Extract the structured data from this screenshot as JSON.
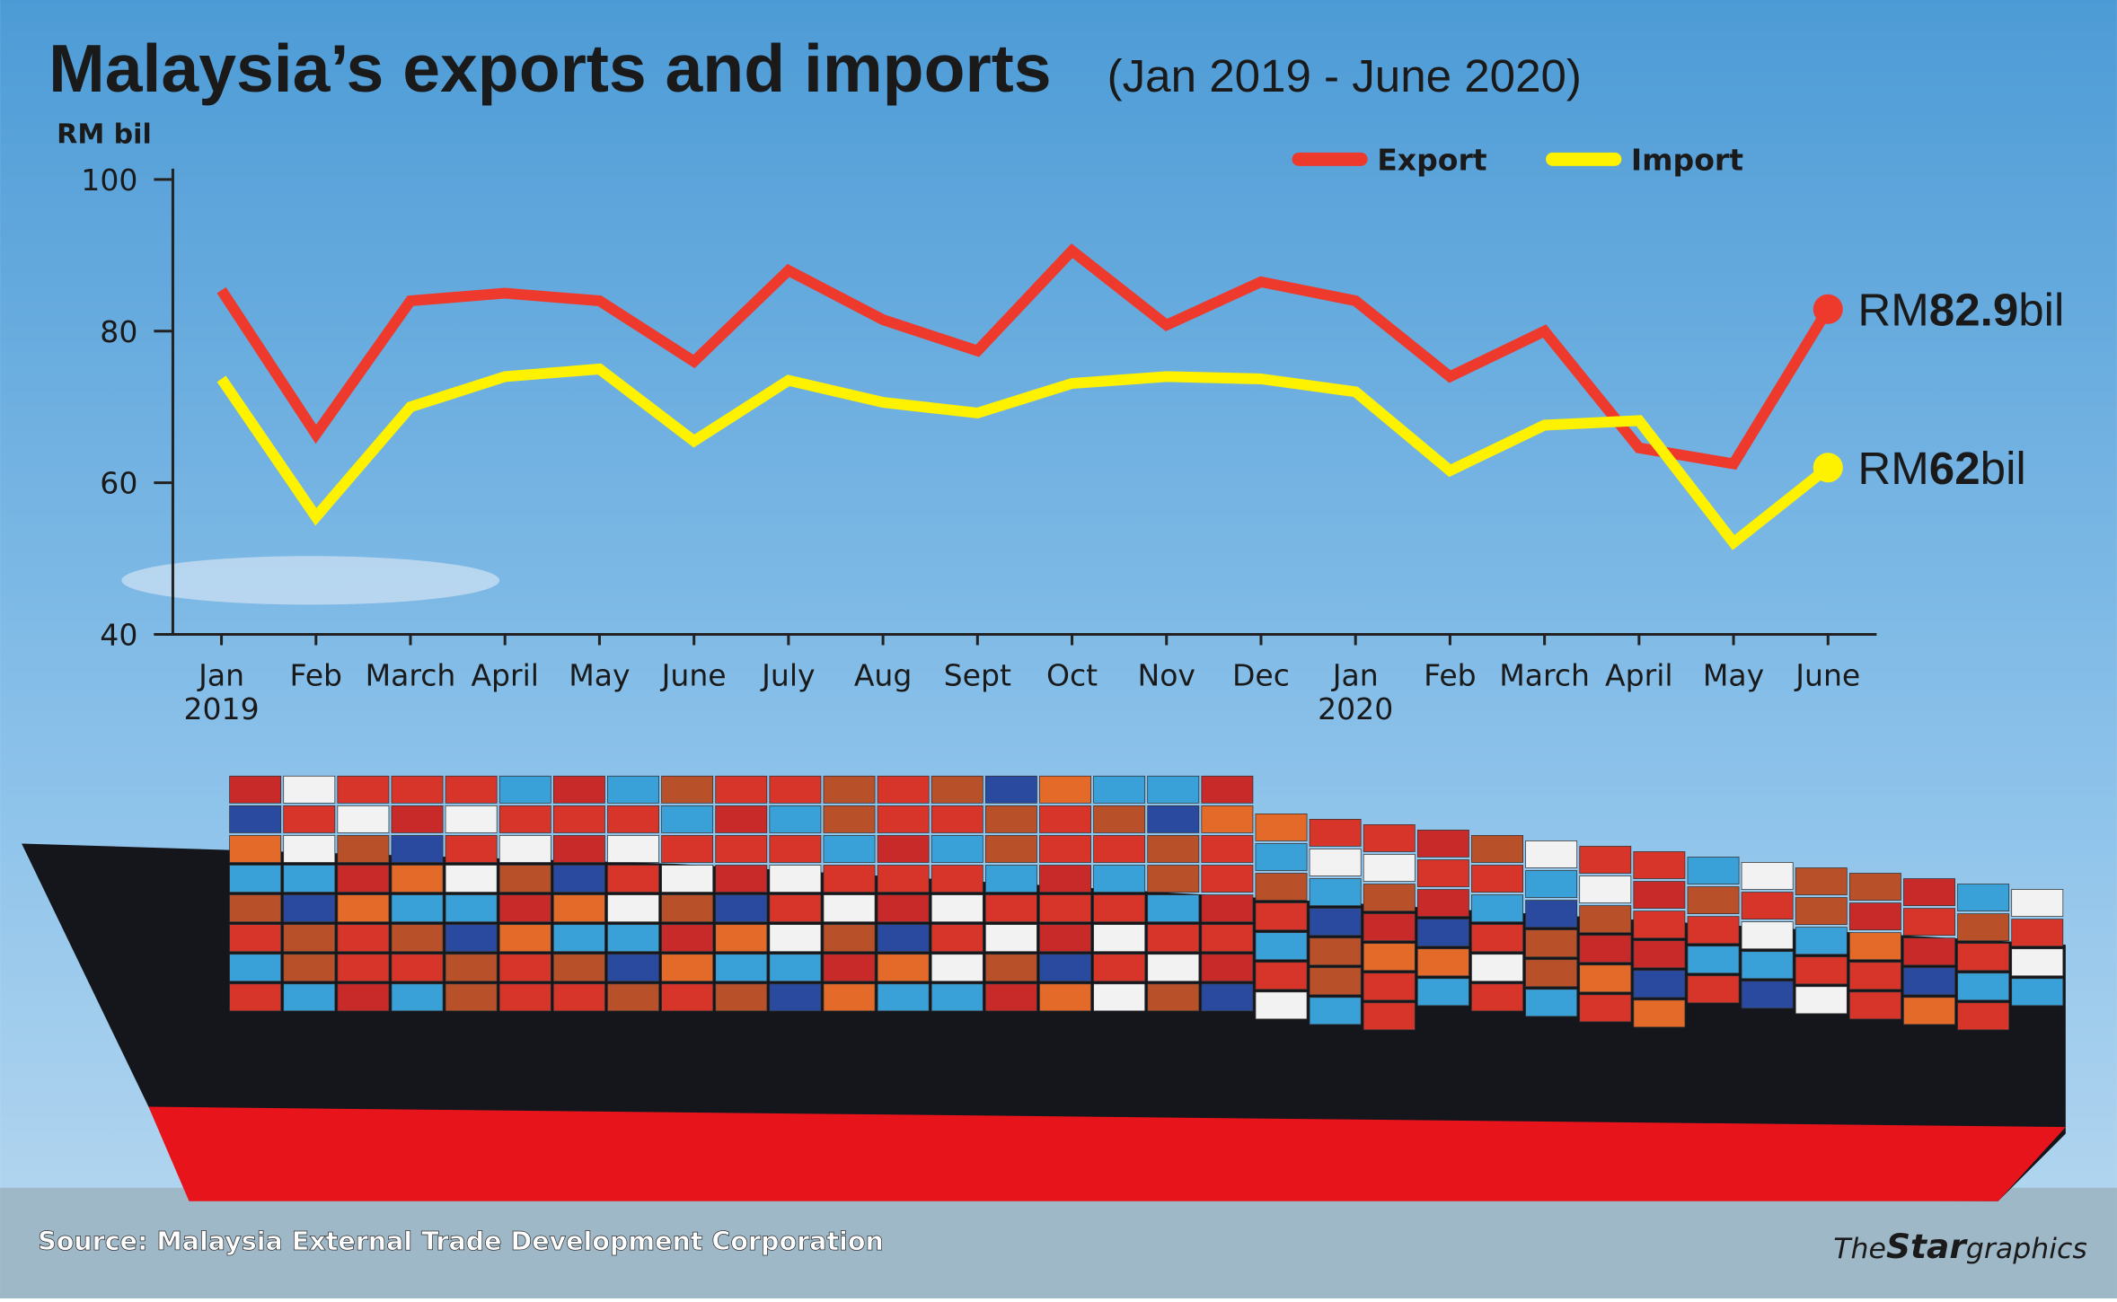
{
  "chart_data": {
    "type": "line",
    "title": "Malaysia’s exports and imports",
    "subtitle": "(Jan 2019 - June 2020)",
    "y_label": "RM bil",
    "categories": [
      "Jan 2019",
      "Feb",
      "March",
      "April",
      "May",
      "June",
      "July",
      "Aug",
      "Sept",
      "Oct",
      "Nov",
      "Dec",
      "Jan 2020",
      "Feb",
      "March",
      "April",
      "May",
      "June"
    ],
    "series": [
      {
        "name": "Export",
        "color": "#ee3a2c",
        "values": [
          85.4,
          66.4,
          84,
          85,
          84,
          76,
          88,
          81.5,
          77.4,
          90.6,
          80.8,
          86.5,
          84,
          74,
          80,
          64.6,
          62.5,
          82.9
        ],
        "end_label": [
          "RM",
          "82.9",
          "bil"
        ]
      },
      {
        "name": "Import",
        "color": "#fff200",
        "values": [
          73.7,
          55.5,
          70,
          74,
          75,
          65.5,
          73.5,
          70.6,
          69.2,
          73.1,
          74,
          73.7,
          72,
          61.6,
          67.6,
          68.2,
          52.1,
          62
        ],
        "end_label": [
          "RM",
          "62",
          "bil"
        ]
      }
    ],
    "ylim": [
      40,
      100
    ],
    "yticks": [
      40,
      60,
      80,
      100
    ],
    "source": "Source: Malaysia External Trade Development Corporation",
    "credit": [
      "The",
      "Star",
      "graphics"
    ]
  }
}
